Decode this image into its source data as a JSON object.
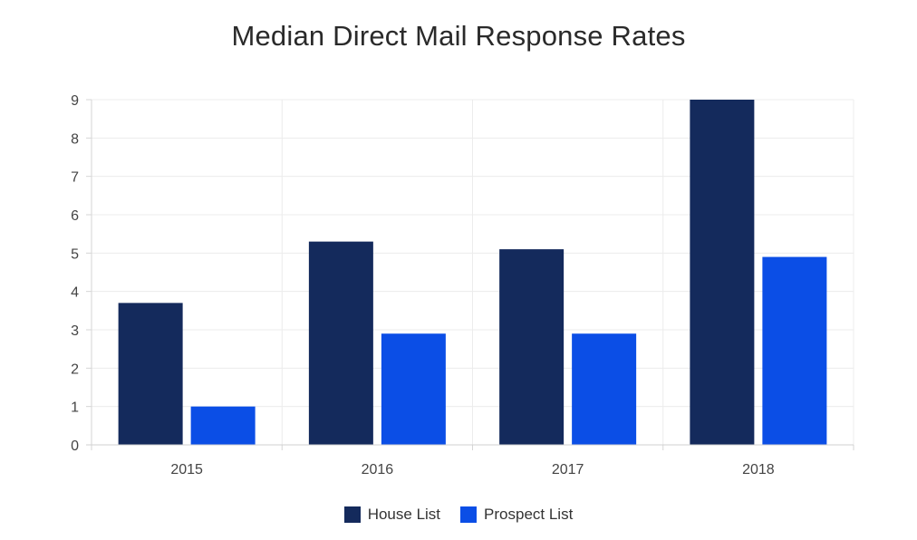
{
  "chart_data": {
    "type": "bar",
    "title": "Median Direct Mail Response Rates",
    "categories": [
      "2015",
      "2016",
      "2017",
      "2018"
    ],
    "series": [
      {
        "name": "House List",
        "values": [
          3.7,
          5.3,
          5.1,
          9.0
        ],
        "color": "#142a5c"
      },
      {
        "name": "Prospect List",
        "values": [
          1.0,
          2.9,
          2.9,
          4.9
        ],
        "color": "#0b4ee6"
      }
    ],
    "y_ticks": [
      "0",
      "1",
      "2",
      "3",
      "4",
      "5",
      "6",
      "7",
      "8",
      "9"
    ],
    "ylim": [
      0,
      9
    ],
    "xlabel": "",
    "ylabel": "",
    "grid": true,
    "legend_position": "bottom-center"
  }
}
